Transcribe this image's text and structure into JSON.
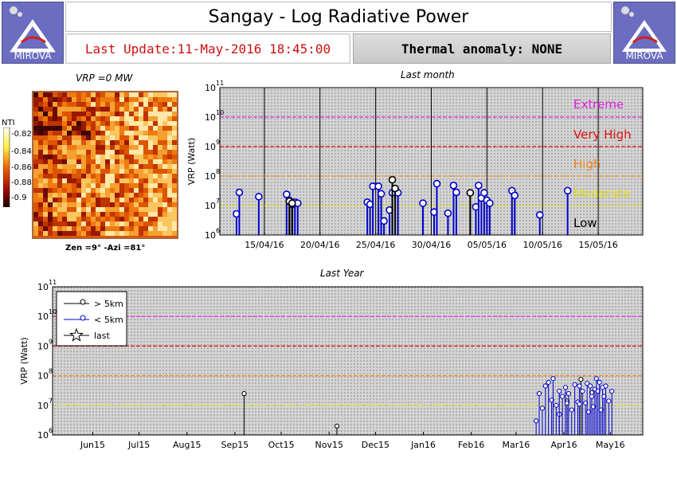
{
  "header": {
    "title": "Sangay - Log Radiative Power",
    "last_update": "Last Update:11-May-2016 18:45:00",
    "thermal_anomaly": "Thermal anomaly: NONE",
    "logo_text": "MIROVA"
  },
  "thermal_image": {
    "vrp_label": "VRP =0 MW",
    "colorbar_title": "NTI",
    "colorbar_ticks": [
      "-0.82",
      "-0.84",
      "-0.86",
      "-0.88",
      "-0.9"
    ],
    "geometry_label": "Zen =9° -Azi =81°"
  },
  "colors": {
    "extreme": "#e020e0",
    "very_high": "#dd1111",
    "high": "#ee8822",
    "moderate": "#e0e020",
    "low": "#000000",
    "blue_series": "#0000cc",
    "black_series": "#000000"
  },
  "chart_data": [
    {
      "type": "scatter",
      "title": "Last month",
      "ylabel": "VRP (Watt)",
      "y_scale": "log",
      "ylim": [
        1000000,
        100000000000
      ],
      "y_tick_exponents": [
        "6",
        "7",
        "8",
        "9",
        "10",
        "11"
      ],
      "xlim": [
        "2016-04-11",
        "2016-05-19"
      ],
      "x_ticks": [
        "15/04/16",
        "20/04/16",
        "25/04/16",
        "30/04/16",
        "05/05/16",
        "10/05/16",
        "15/05/16"
      ],
      "threshold_levels": [
        {
          "label": "Extreme",
          "value": 10000000000,
          "color": "#e020e0"
        },
        {
          "label": "Very High",
          "value": 1000000000,
          "color": "#dd1111"
        },
        {
          "label": "High",
          "value": 100000000,
          "color": "#ee8822"
        },
        {
          "label": "Moderate",
          "value": 10000000,
          "color": "#e0e020"
        },
        {
          "label": "Low",
          "value": null,
          "color": "#000000"
        }
      ],
      "series": [
        {
          "name": "< 5km",
          "color": "#0000cc",
          "x": [
            "2016-04-12T12:00",
            "2016-04-12T18:00",
            "2016-04-14T12:00",
            "2016-04-17T00:00",
            "2016-04-17T06:00",
            "2016-04-17T12:00",
            "2016-04-17T18:00",
            "2016-04-18T00:00",
            "2016-04-24T06:00",
            "2016-04-24T12:00",
            "2016-04-24T18:00",
            "2016-04-25T06:00",
            "2016-04-25T12:00",
            "2016-04-25T18:00",
            "2016-04-26T06:00",
            "2016-04-26T12:00",
            "2016-04-27T00:00",
            "2016-04-29T06:00",
            "2016-04-30T06:00",
            "2016-04-30T12:00",
            "2016-05-01T12:00",
            "2016-05-02T00:00",
            "2016-05-02T06:00",
            "2016-05-04T00:00",
            "2016-05-04T06:00",
            "2016-05-04T12:00",
            "2016-05-04T18:00",
            "2016-05-05T00:00",
            "2016-05-05T06:00",
            "2016-05-07T06:00",
            "2016-05-07T12:00",
            "2016-05-09T18:00",
            "2016-05-12T06:00"
          ],
          "values": [
            5200000,
            28000000,
            20000000,
            24000000,
            15000000,
            11000000,
            13000000,
            12000000,
            13000000,
            11000000,
            45000000,
            45000000,
            25000000,
            3000000,
            7000000,
            27000000,
            27000000,
            12000000,
            6000000,
            55000000,
            5500000,
            48000000,
            28000000,
            9000000,
            48000000,
            18000000,
            27000000,
            15000000,
            12000000,
            32000000,
            22000000,
            4800000,
            32000000
          ]
        },
        {
          "name": "> 5km",
          "color": "#000000",
          "x": [
            "2016-04-17T06:00",
            "2016-04-17T12:00",
            "2016-04-26T12:00",
            "2016-04-26T18:00",
            "2016-05-03T12:00"
          ],
          "values": [
            14000000,
            12000000,
            75000000,
            38000000,
            27000000
          ]
        }
      ]
    },
    {
      "type": "scatter",
      "title": "Last Year",
      "ylabel": "VRP (Watt)",
      "y_scale": "log",
      "ylim": [
        1000000,
        100000000000
      ],
      "y_tick_exponents": [
        "6",
        "7",
        "8",
        "9",
        "10",
        "11"
      ],
      "xlim": [
        "2015-05-20",
        "2016-06-05"
      ],
      "x_ticks": [
        "Jun15",
        "Jul15",
        "Aug15",
        "Sep15",
        "Oct15",
        "Nov15",
        "Dec15",
        "Jan16",
        "Feb16",
        "Mar16",
        "Apr16",
        "May16"
      ],
      "threshold_levels": [
        {
          "label": "Extreme",
          "value": 10000000000,
          "color": "#e020e0"
        },
        {
          "label": "Very High",
          "value": 1000000000,
          "color": "#dd1111"
        },
        {
          "label": "High",
          "value": 100000000,
          "color": "#ee8822"
        },
        {
          "label": "Moderate",
          "value": 10000000,
          "color": "#e0e020"
        }
      ],
      "legend": {
        "placement": "top-left",
        "entries": [
          "> 5km",
          "< 5km",
          "last"
        ]
      },
      "series": [
        {
          "name": "> 5km",
          "color": "#000000",
          "x": [
            "2015-09-21",
            "2015-11-20",
            "2016-04-17",
            "2016-04-26",
            "2016-05-03"
          ],
          "values": [
            25000000,
            2000000,
            14000000,
            75000000,
            27000000
          ]
        },
        {
          "name": "< 5km",
          "color": "#0000cc",
          "x": [
            "2016-03-28",
            "2016-03-30",
            "2016-04-01",
            "2016-04-03",
            "2016-04-05",
            "2016-04-07",
            "2016-04-08",
            "2016-04-10",
            "2016-04-12",
            "2016-04-12",
            "2016-04-14",
            "2016-04-16",
            "2016-04-17",
            "2016-04-18",
            "2016-04-20",
            "2016-04-22",
            "2016-04-24",
            "2016-04-25",
            "2016-04-25",
            "2016-04-27",
            "2016-04-29",
            "2016-04-30",
            "2016-05-01",
            "2016-05-02",
            "2016-05-03",
            "2016-05-04",
            "2016-05-05",
            "2016-05-06",
            "2016-05-07",
            "2016-05-08",
            "2016-05-09",
            "2016-05-10",
            "2016-05-11",
            "2016-05-12",
            "2016-05-14",
            "2016-05-16"
          ],
          "values": [
            3000000,
            25000000,
            8000000,
            45000000,
            60000000,
            15000000,
            80000000,
            10000000,
            5000000,
            30000000,
            20000000,
            40000000,
            12000000,
            25000000,
            7000000,
            50000000,
            13000000,
            45000000,
            11000000,
            30000000,
            12000000,
            55000000,
            6000000,
            45000000,
            20000000,
            9000000,
            35000000,
            80000000,
            30000000,
            60000000,
            7000000,
            40000000,
            20000000,
            45000000,
            14000000,
            30000000
          ]
        }
      ]
    }
  ]
}
